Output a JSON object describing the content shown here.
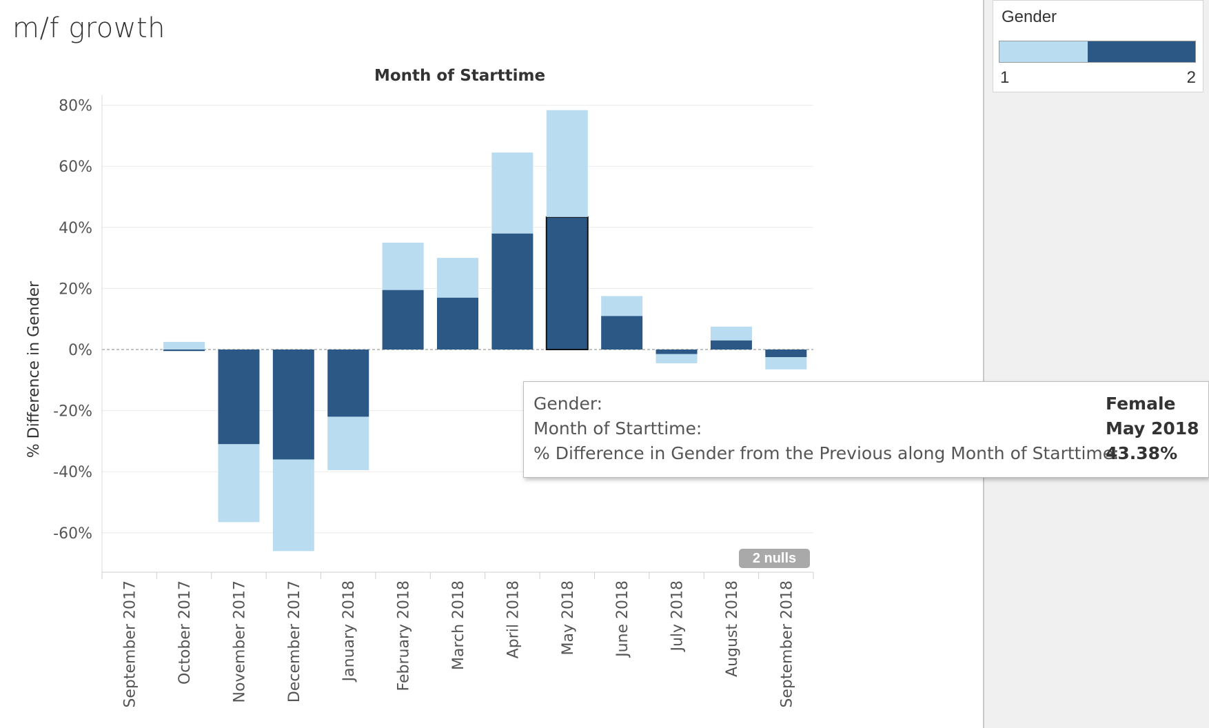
{
  "sheet": {
    "title": "m/f growth"
  },
  "legend": {
    "title": "Gender",
    "min_label": "1",
    "max_label": "2",
    "colors": [
      "#b9dcf0",
      "#2b5885"
    ]
  },
  "tooltip": {
    "rows": [
      {
        "label": "Gender:",
        "value": "Female"
      },
      {
        "label": "Month of Starttime:",
        "value": "May 2018"
      },
      {
        "label": "% Difference in Gender from the Previous along Month of Starttime:",
        "value": "43.38%"
      }
    ]
  },
  "nulls_indicator": "2 nulls",
  "chart_data": {
    "type": "bar",
    "title": "Month of Starttime",
    "ylabel": "% Difference in Gender",
    "xlabel": "",
    "ylim": [
      -75,
      85
    ],
    "yticks": [
      80,
      60,
      40,
      20,
      0,
      -20,
      -40,
      -60
    ],
    "ytick_labels": [
      "80%",
      "60%",
      "40%",
      "20%",
      "0%",
      "-20%",
      "-40%",
      "-60%"
    ],
    "grid": true,
    "categories": [
      "September 2017",
      "October 2017",
      "November 2017",
      "December 2017",
      "January 2018",
      "February 2018",
      "March 2018",
      "April 2018",
      "May 2018",
      "June 2018",
      "July 2018",
      "August 2018",
      "September 2018"
    ],
    "series": [
      {
        "name": "2",
        "color": "#2b5885",
        "values": [
          null,
          -0.5,
          -31,
          -36,
          -22,
          19.5,
          17,
          38,
          43.38,
          11,
          -1.5,
          3,
          -2.5
        ]
      },
      {
        "name": "1",
        "color": "#b9dcf0",
        "values": [
          null,
          2.5,
          -25.5,
          -30,
          -17.5,
          15.5,
          13,
          26.5,
          35,
          6.5,
          -3,
          4.5,
          -4
        ]
      }
    ],
    "stacked": true,
    "highlighted": {
      "category": "May 2018",
      "series": "2"
    }
  }
}
